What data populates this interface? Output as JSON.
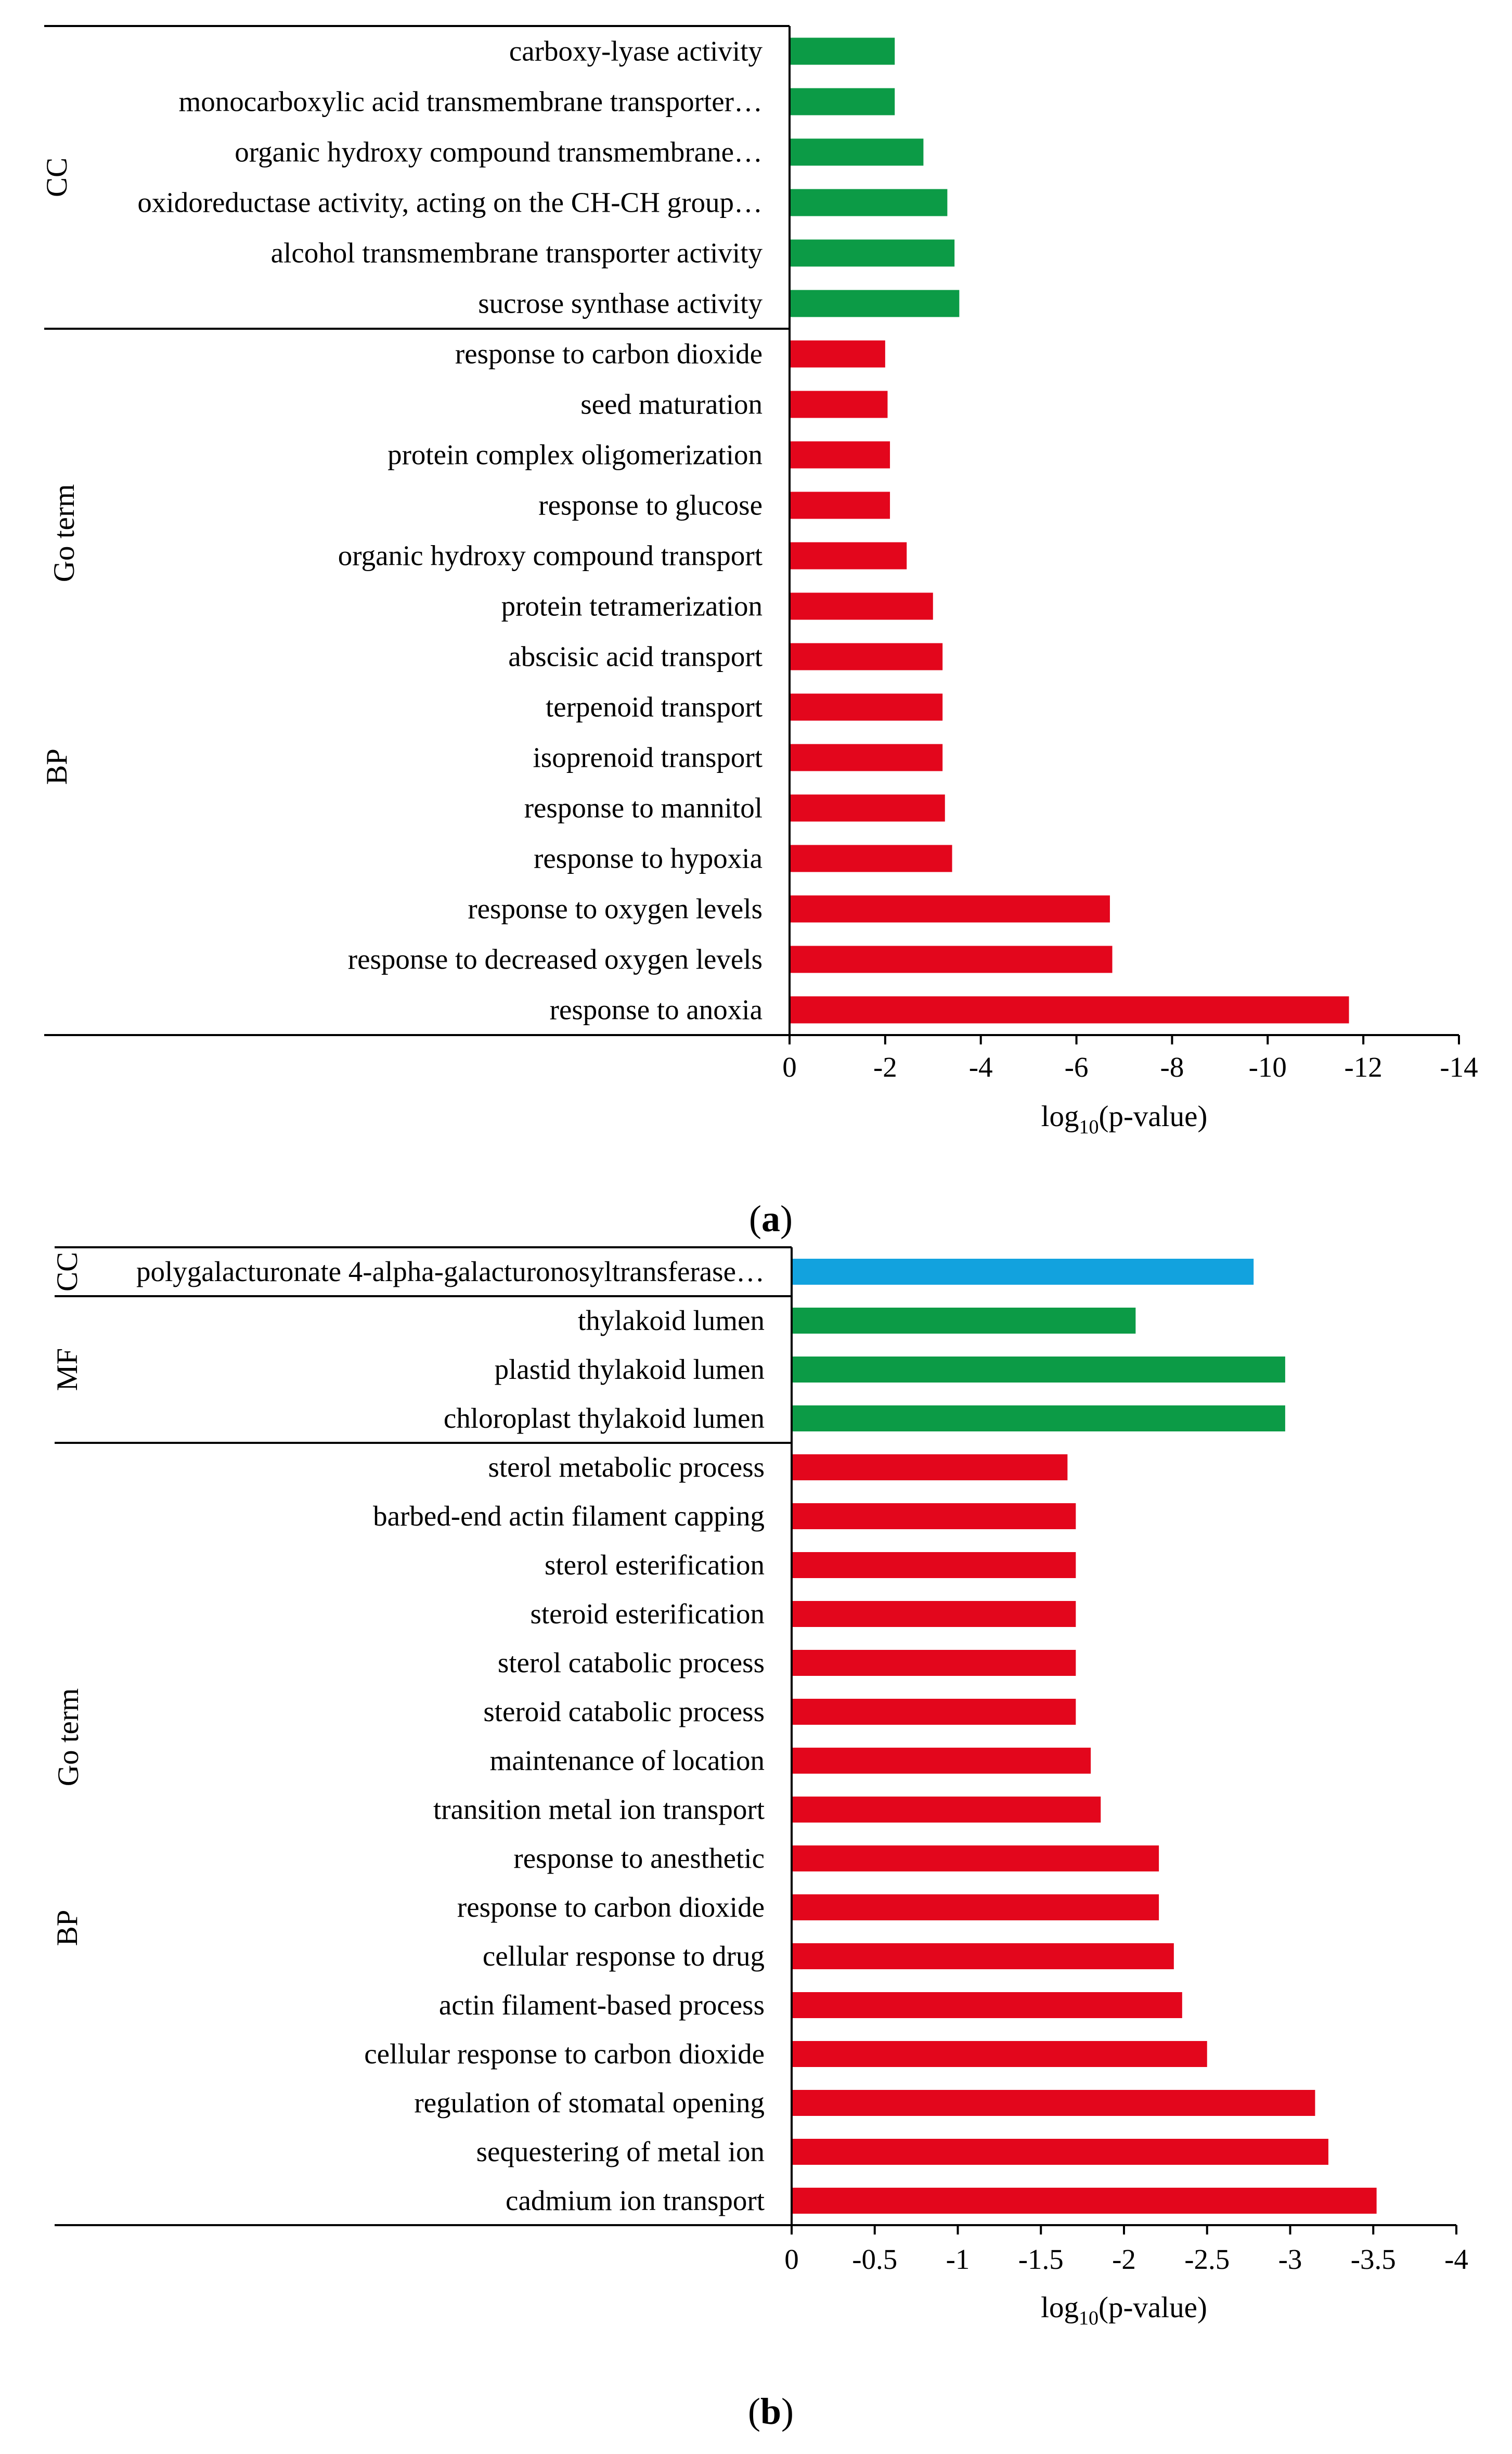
{
  "colors": {
    "bp": "#e3061c",
    "mf": "#0c9b46",
    "cc_blue": "#12a2de",
    "axis": "#000000"
  },
  "panel_labels": {
    "a": "a",
    "b": "b"
  },
  "chart_data": [
    {
      "type": "bar",
      "orientation": "horizontal",
      "panel": "a",
      "xlabel_main": "log",
      "xlabel_sub": "10",
      "xlabel_tail": "(p-value)",
      "xlim": [
        0,
        -14
      ],
      "xticks": [
        "0",
        "-2",
        "-4",
        "-6",
        "-8",
        "-10",
        "-12",
        "-14"
      ],
      "xtick_values": [
        0,
        -2,
        -4,
        -6,
        -8,
        -10,
        -12,
        -14
      ],
      "groups": [
        {
          "label": "CC",
          "color_key": "mf",
          "start": 0,
          "end": 5
        },
        {
          "label": "BP",
          "color_key": "bp",
          "start": 6,
          "end": 19
        }
      ],
      "side_label": "Go term",
      "categories": [
        "carboxy-lyase activity",
        "monocarboxylic acid transmembrane transporter…",
        "organic hydroxy compound transmembrane…",
        "oxidoreductase activity, acting on the CH-CH group…",
        "alcohol transmembrane transporter activity",
        "sucrose synthase activity",
        "response to carbon dioxide",
        "seed maturation",
        "protein complex oligomerization",
        "response to glucose",
        "organic hydroxy compound transport",
        "protein tetramerization",
        "abscisic acid transport",
        "terpenoid transport",
        "isoprenoid transport",
        "response to mannitol",
        "response to hypoxia",
        "response to oxygen levels",
        "response to decreased oxygen levels",
        "response to anoxia"
      ],
      "values": [
        -2.2,
        -2.2,
        -2.8,
        -3.3,
        -3.45,
        -3.55,
        -2.0,
        -2.05,
        -2.1,
        -2.1,
        -2.45,
        -3.0,
        -3.2,
        -3.2,
        -3.2,
        -3.25,
        -3.4,
        -6.7,
        -6.75,
        -11.7
      ]
    },
    {
      "type": "bar",
      "orientation": "horizontal",
      "panel": "b",
      "xlabel_main": "log",
      "xlabel_sub": "10",
      "xlabel_tail": "(p-value)",
      "xlim": [
        0,
        -4
      ],
      "xticks": [
        "0",
        "-0.5",
        "-1",
        "-1.5",
        "-2",
        "-2.5",
        "-3",
        "-3.5",
        "-4"
      ],
      "xtick_values": [
        0,
        -0.5,
        -1,
        -1.5,
        -2,
        -2.5,
        -3,
        -3.5,
        -4
      ],
      "groups": [
        {
          "label": "CC",
          "color_key": "cc_blue",
          "start": 0,
          "end": 0
        },
        {
          "label": "MF",
          "color_key": "mf",
          "start": 1,
          "end": 3
        },
        {
          "label": "BP",
          "color_key": "bp",
          "start": 4,
          "end": 19
        }
      ],
      "side_label": "Go term",
      "categories": [
        "polygalacturonate 4-alpha-galacturonosyltransferase…",
        "thylakoid lumen",
        "plastid thylakoid lumen",
        "chloroplast thylakoid lumen",
        "sterol metabolic process",
        "barbed-end actin filament capping",
        "sterol esterification",
        "steroid esterification",
        "sterol catabolic process",
        "steroid catabolic process",
        "maintenance of location",
        "transition metal ion transport",
        "response to anesthetic",
        "response to carbon dioxide",
        "cellular response to drug",
        "actin filament-based process",
        "cellular response to carbon dioxide",
        "regulation of stomatal opening",
        "sequestering of metal ion",
        "cadmium ion transport"
      ],
      "values": [
        -2.78,
        -2.07,
        -2.97,
        -2.97,
        -1.66,
        -1.71,
        -1.71,
        -1.71,
        -1.71,
        -1.71,
        -1.8,
        -1.86,
        -2.21,
        -2.21,
        -2.3,
        -2.35,
        -2.5,
        -3.15,
        -3.23,
        -3.52
      ]
    }
  ]
}
